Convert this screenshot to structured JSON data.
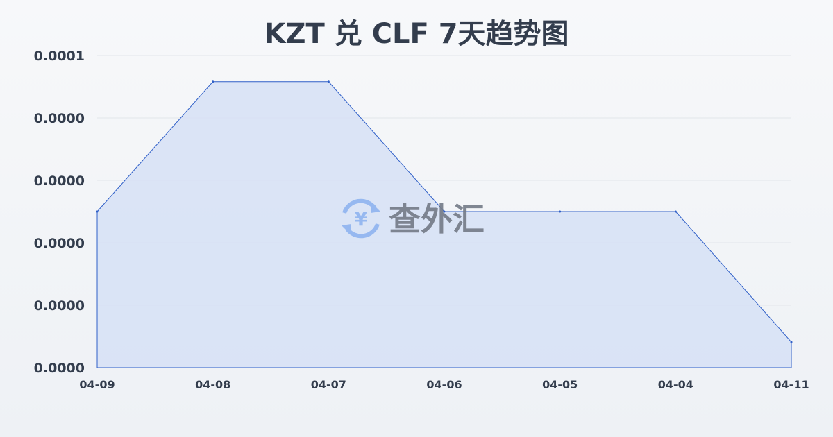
{
  "chart_data": {
    "type": "area",
    "title": "KZT 兑 CLF 7天趋势图",
    "xlabel": "",
    "ylabel": "",
    "categories": [
      "04-09",
      "04-08",
      "04-07",
      "04-06",
      "04-05",
      "04-04",
      "04-11"
    ],
    "values": [
      5e-05,
      9.16e-05,
      9.16e-05,
      5e-05,
      5e-05,
      5e-05,
      8.2e-06
    ],
    "ylim": [
      0,
      0.0001
    ],
    "yticks": [
      0,
      2e-05,
      4e-05,
      6e-05,
      8e-05,
      0.0001
    ],
    "ytick_labels": [
      "0.0000",
      "0.0000",
      "0.0000",
      "0.0000",
      "0.0000",
      "0.0001"
    ],
    "grid": true,
    "legend": "none",
    "colors": {
      "line": "#2f5fc8",
      "fill": "#d6e1f6",
      "grid": "#e2e5ea",
      "text": "#333d4d"
    }
  },
  "watermark": {
    "text": "查外汇",
    "icon": "yen-exchange-icon",
    "icon_color": "#8fb4f0"
  }
}
